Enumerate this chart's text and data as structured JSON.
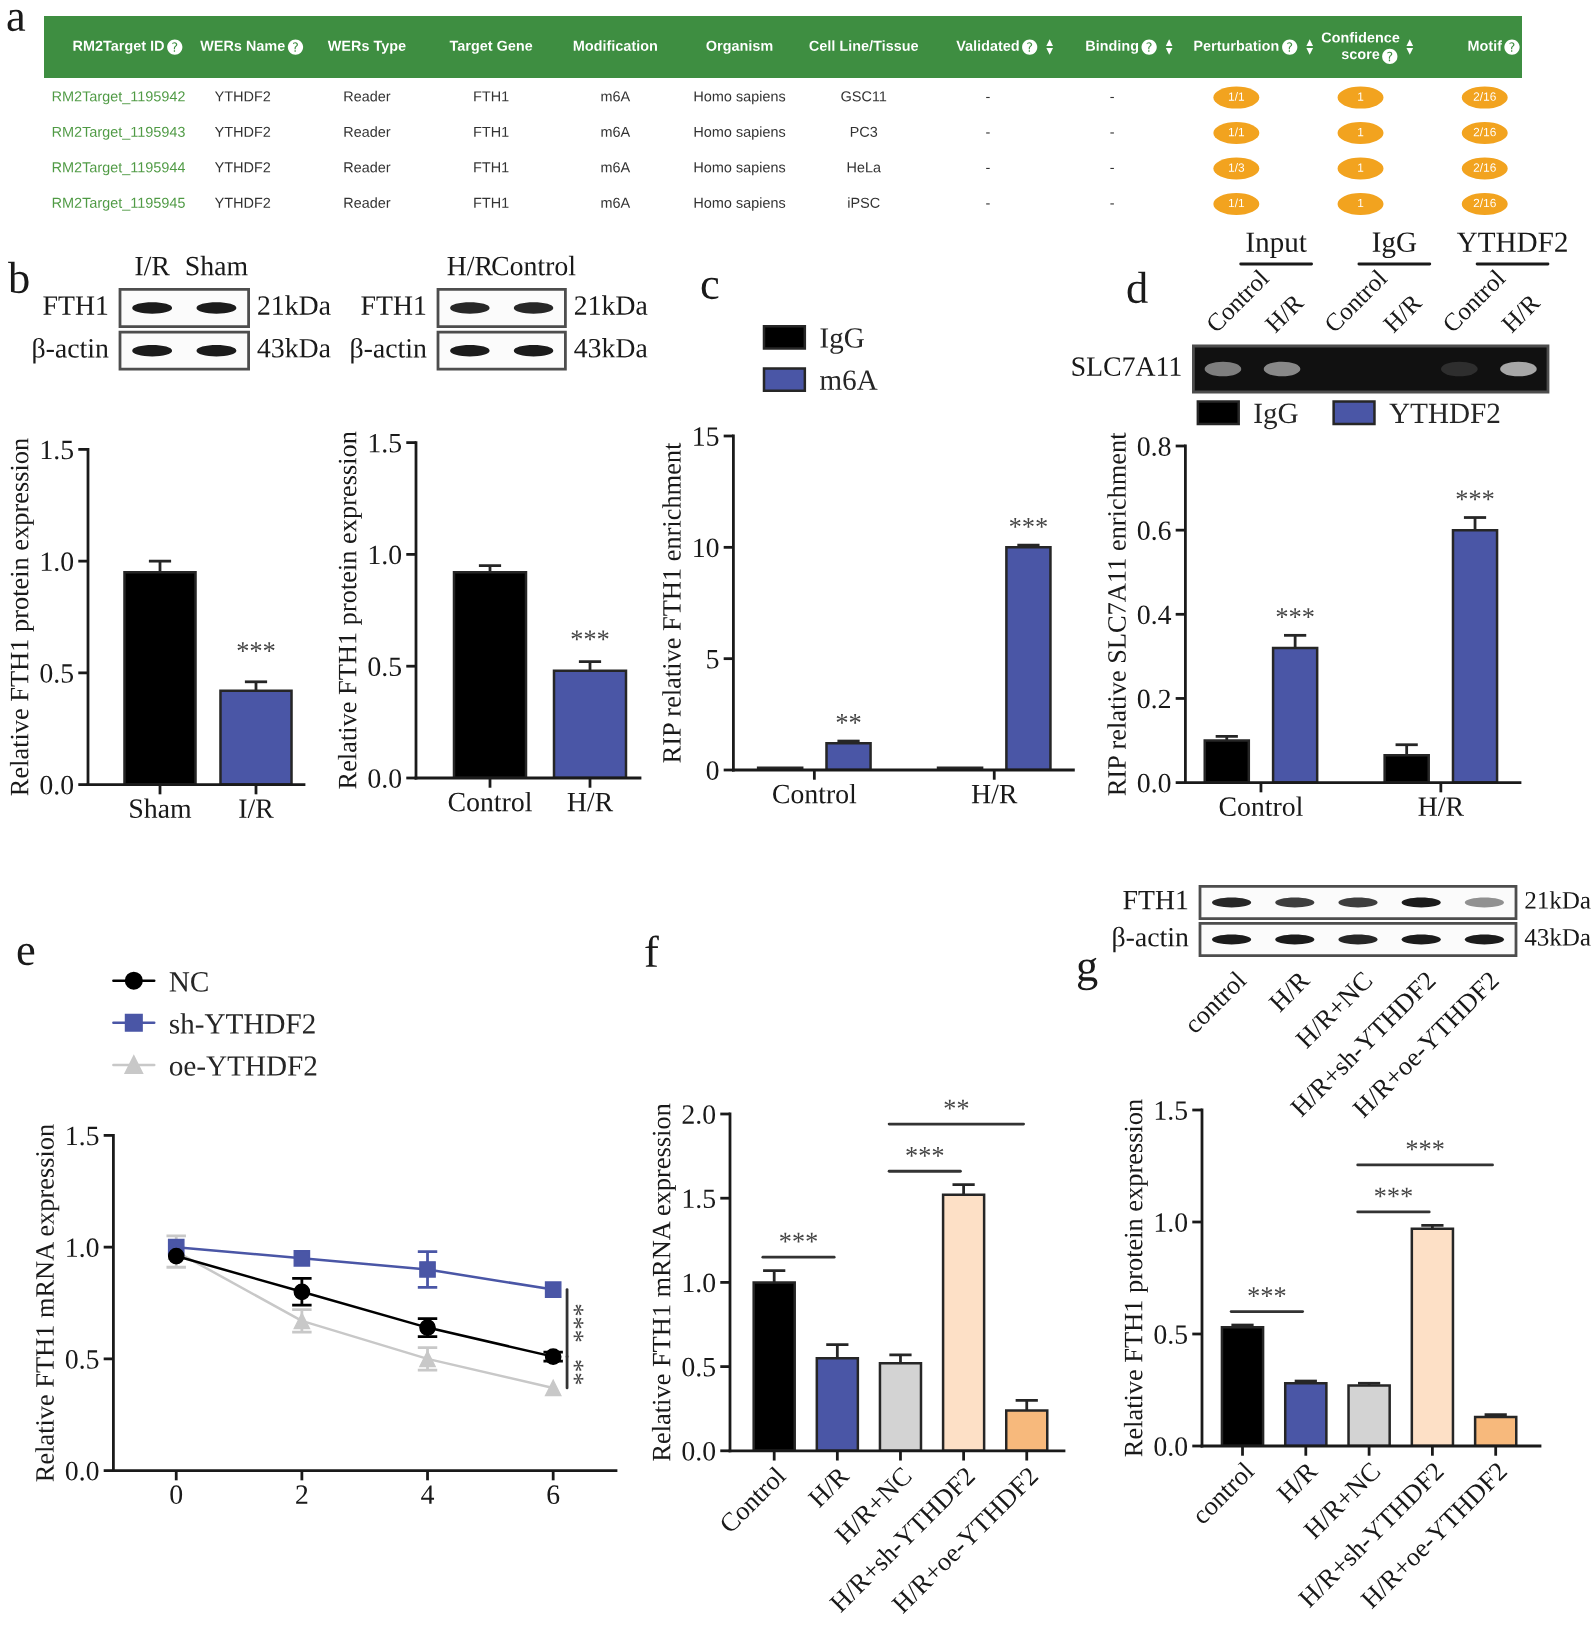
{
  "chart_data": [
    {
      "type": "other",
      "title": "a",
      "categories": [
        "RM2Target ID",
        "WERs Name",
        "WERs Type",
        "Target Gene",
        "Modification",
        "Organism",
        "Cell Line/Tissue",
        "Validated",
        "Binding",
        "Perturbation",
        "Confidence\nscore",
        "Motif"
      ],
      "cell_labels": [
        [
          "RM2Target_1195942",
          "YTHDF2",
          "Reader",
          "FTH1",
          "m6A",
          "Homo sapiens",
          "GSC11",
          "-",
          "-",
          "1/1",
          "1",
          "2/16"
        ],
        [
          "RM2Target_1195943",
          "YTHDF2",
          "Reader",
          "FTH1",
          "m6A",
          "Homo sapiens",
          "PC3",
          "-",
          "-",
          "1/1",
          "1",
          "2/16"
        ],
        [
          "RM2Target_1195944",
          "YTHDF2",
          "Reader",
          "FTH1",
          "m6A",
          "Homo sapiens",
          "HeLa",
          "-",
          "-",
          "1/3",
          "1",
          "2/16"
        ],
        [
          "RM2Target_1195945",
          "YTHDF2",
          "Reader",
          "FTH1",
          "m6A",
          "Homo sapiens",
          "iPSC",
          "-",
          "-",
          "1/1",
          "1",
          "2/16"
        ]
      ]
    },
    {
      "type": "other",
      "title": "b",
      "categories": [
        "I/R",
        "Sham"
      ],
      "y_categories": [
        "FTH1",
        "β-actin"
      ],
      "y2_categories": [
        "21kDa",
        "43kDa"
      ]
    },
    {
      "type": "other",
      "categories": [
        "H/R",
        "Control"
      ],
      "y_categories": [
        "FTH1",
        "β-actin"
      ],
      "y2_categories": [
        "21kDa",
        "43kDa"
      ]
    },
    {
      "type": "bar",
      "categories": [
        "Sham",
        "I/R"
      ],
      "values": [
        0.95,
        0.42
      ],
      "errors": [
        0.05,
        0.04
      ],
      "colors": [
        "#000000",
        "#4a56a6"
      ],
      "ylabel": "Relative FTH1 protein expression",
      "ylim": [
        0,
        1.5
      ],
      "yticks": [
        {
          "value": 0,
          "label": "0.0"
        },
        0.5,
        {
          "value": 1,
          "label": "1.0"
        },
        1.5
      ],
      "annotations": [
        "***"
      ]
    },
    {
      "type": "bar",
      "categories": [
        "Control",
        "H/R"
      ],
      "values": [
        0.92,
        0.48
      ],
      "errors": [
        0.03,
        0.04
      ],
      "colors": [
        "#000000",
        "#4a56a6"
      ],
      "ylabel": "Relative FTH1 protein expression",
      "ylim": [
        0,
        1.5
      ],
      "yticks": [
        {
          "value": 0,
          "label": "0.0"
        },
        0.5,
        {
          "value": 1,
          "label": "1.0"
        },
        1.5
      ],
      "annotations": [
        "***"
      ]
    },
    {
      "type": "bar",
      "title": "c",
      "categories": [
        "Control",
        "H/R"
      ],
      "series": [
        {
          "name": "IgG",
          "color": "#000000",
          "values": [
            0.1,
            0.1
          ]
        },
        {
          "name": "m6A",
          "color": "#4a56a6",
          "values": [
            1.2,
            10.0
          ],
          "errors": [
            0.1,
            0.1
          ]
        }
      ],
      "ylabel": "RIP relative FTH1 enrichment",
      "ylim": [
        0,
        15
      ],
      "yticks": [
        0,
        5,
        10,
        15
      ],
      "legend": "top left",
      "annotations": [
        "**",
        "***"
      ]
    },
    {
      "type": "other",
      "title": "d",
      "categories": [
        "Control",
        "H/R",
        "Control",
        "H/R",
        "Control",
        "H/R"
      ],
      "y_categories": [
        "SLC7A11"
      ],
      "annotations": [
        "Input",
        "IgG",
        "YTHDF2"
      ]
    },
    {
      "type": "bar",
      "categories": [
        "Control",
        "H/R"
      ],
      "series": [
        {
          "name": "IgG",
          "color": "#000000",
          "values": [
            0.1,
            0.065
          ],
          "errors": [
            0.01,
            0.025
          ]
        },
        {
          "name": "YTHDF2",
          "color": "#4a56a6",
          "values": [
            0.32,
            0.6
          ],
          "errors": [
            0.03,
            0.03
          ]
        }
      ],
      "ylabel": "RIP relative SLC7A11 enrichment",
      "ylim": [
        0,
        0.8
      ],
      "yticks": [
        {
          "value": 0,
          "label": "0.0"
        },
        0.2,
        0.4,
        0.6,
        0.8
      ],
      "legend": "top",
      "annotations": [
        "***",
        "***"
      ]
    },
    {
      "type": "line",
      "title": "e",
      "x": [
        0,
        2,
        4,
        6
      ],
      "series": [
        {
          "name": "NC",
          "color": "#000000",
          "marker": "circle",
          "values": [
            0.96,
            0.8,
            0.64,
            0.51
          ],
          "errors": [
            null,
            0.06,
            0.04,
            0.02
          ]
        },
        {
          "name": "sh-YTHDF2",
          "color": "#4a56a6",
          "marker": "square",
          "values": [
            1.0,
            0.95,
            0.9,
            0.81
          ],
          "errors": [
            null,
            null,
            0.08,
            null
          ]
        },
        {
          "name": "oe-YTHDF2",
          "color": "#c8c8c8",
          "marker": "triangle",
          "values": [
            0.98,
            0.67,
            0.5,
            0.37
          ],
          "errors": [
            0.07,
            0.05,
            0.05,
            null
          ]
        }
      ],
      "ylabel": "Relative FTH1 mRNA expression",
      "xlim": [
        -1,
        7
      ],
      "xticks": [
        0,
        2,
        4,
        6
      ],
      "ylim": [
        0,
        1.5
      ],
      "yticks": [
        {
          "value": 0,
          "label": "0.0"
        },
        0.5,
        {
          "value": 1,
          "label": "1.0"
        },
        1.5
      ],
      "legend": "top left",
      "annotations": [
        "***",
        "**"
      ]
    },
    {
      "type": "bar",
      "title": "f",
      "categories": [
        "Control",
        "H/R",
        "H/R+NC",
        "H/R+sh-YTHDF2",
        "H/R+oe-YTHDF2"
      ],
      "values": [
        1.0,
        0.55,
        0.52,
        1.52,
        0.24
      ],
      "errors": [
        0.07,
        0.08,
        0.05,
        0.06,
        0.06
      ],
      "colors": [
        "#000000",
        "#4a56a6",
        "#d3d3d3",
        "#fde0c6",
        "#f7b97c"
      ],
      "ylabel": "Relative FTH1 mRNA expression",
      "ylim": [
        0,
        2
      ],
      "yticks": [
        {
          "value": 0,
          "label": "0.0"
        },
        0.5,
        {
          "value": 1,
          "label": "1.0"
        },
        1.5,
        {
          "value": 2,
          "label": "2.0"
        }
      ],
      "annotations": [
        "***",
        "***",
        "**"
      ]
    },
    {
      "type": "other",
      "title": "g",
      "categories": [
        "control",
        "H/R",
        "H/R+NC",
        "H/R+sh-YTHDF2",
        "H/R+oe-YTHDF2"
      ],
      "y_categories": [
        "FTH1",
        "β-actin"
      ],
      "y2_categories": [
        "21kDa",
        "43kDa"
      ]
    },
    {
      "type": "bar",
      "categories": [
        "control",
        "H/R",
        "H/R+NC",
        "H/R+sh-YTHDF2",
        "H/R+oe-YTHDF2"
      ],
      "values": [
        0.53,
        0.28,
        0.27,
        0.97,
        0.13
      ],
      "errors": [
        0.01,
        0.01,
        0.01,
        0.015,
        0.01
      ],
      "colors": [
        "#000000",
        "#4a56a6",
        "#d3d3d3",
        "#fde0c6",
        "#f7b97c"
      ],
      "ylabel": "Relative FTH1 protein expression",
      "ylim": [
        0,
        1.5
      ],
      "yticks": [
        {
          "value": 0,
          "label": "0.0"
        },
        0.5,
        {
          "value": 1,
          "label": "1.0"
        },
        1.5
      ],
      "annotations": [
        "***",
        "***",
        "***"
      ]
    }
  ]
}
